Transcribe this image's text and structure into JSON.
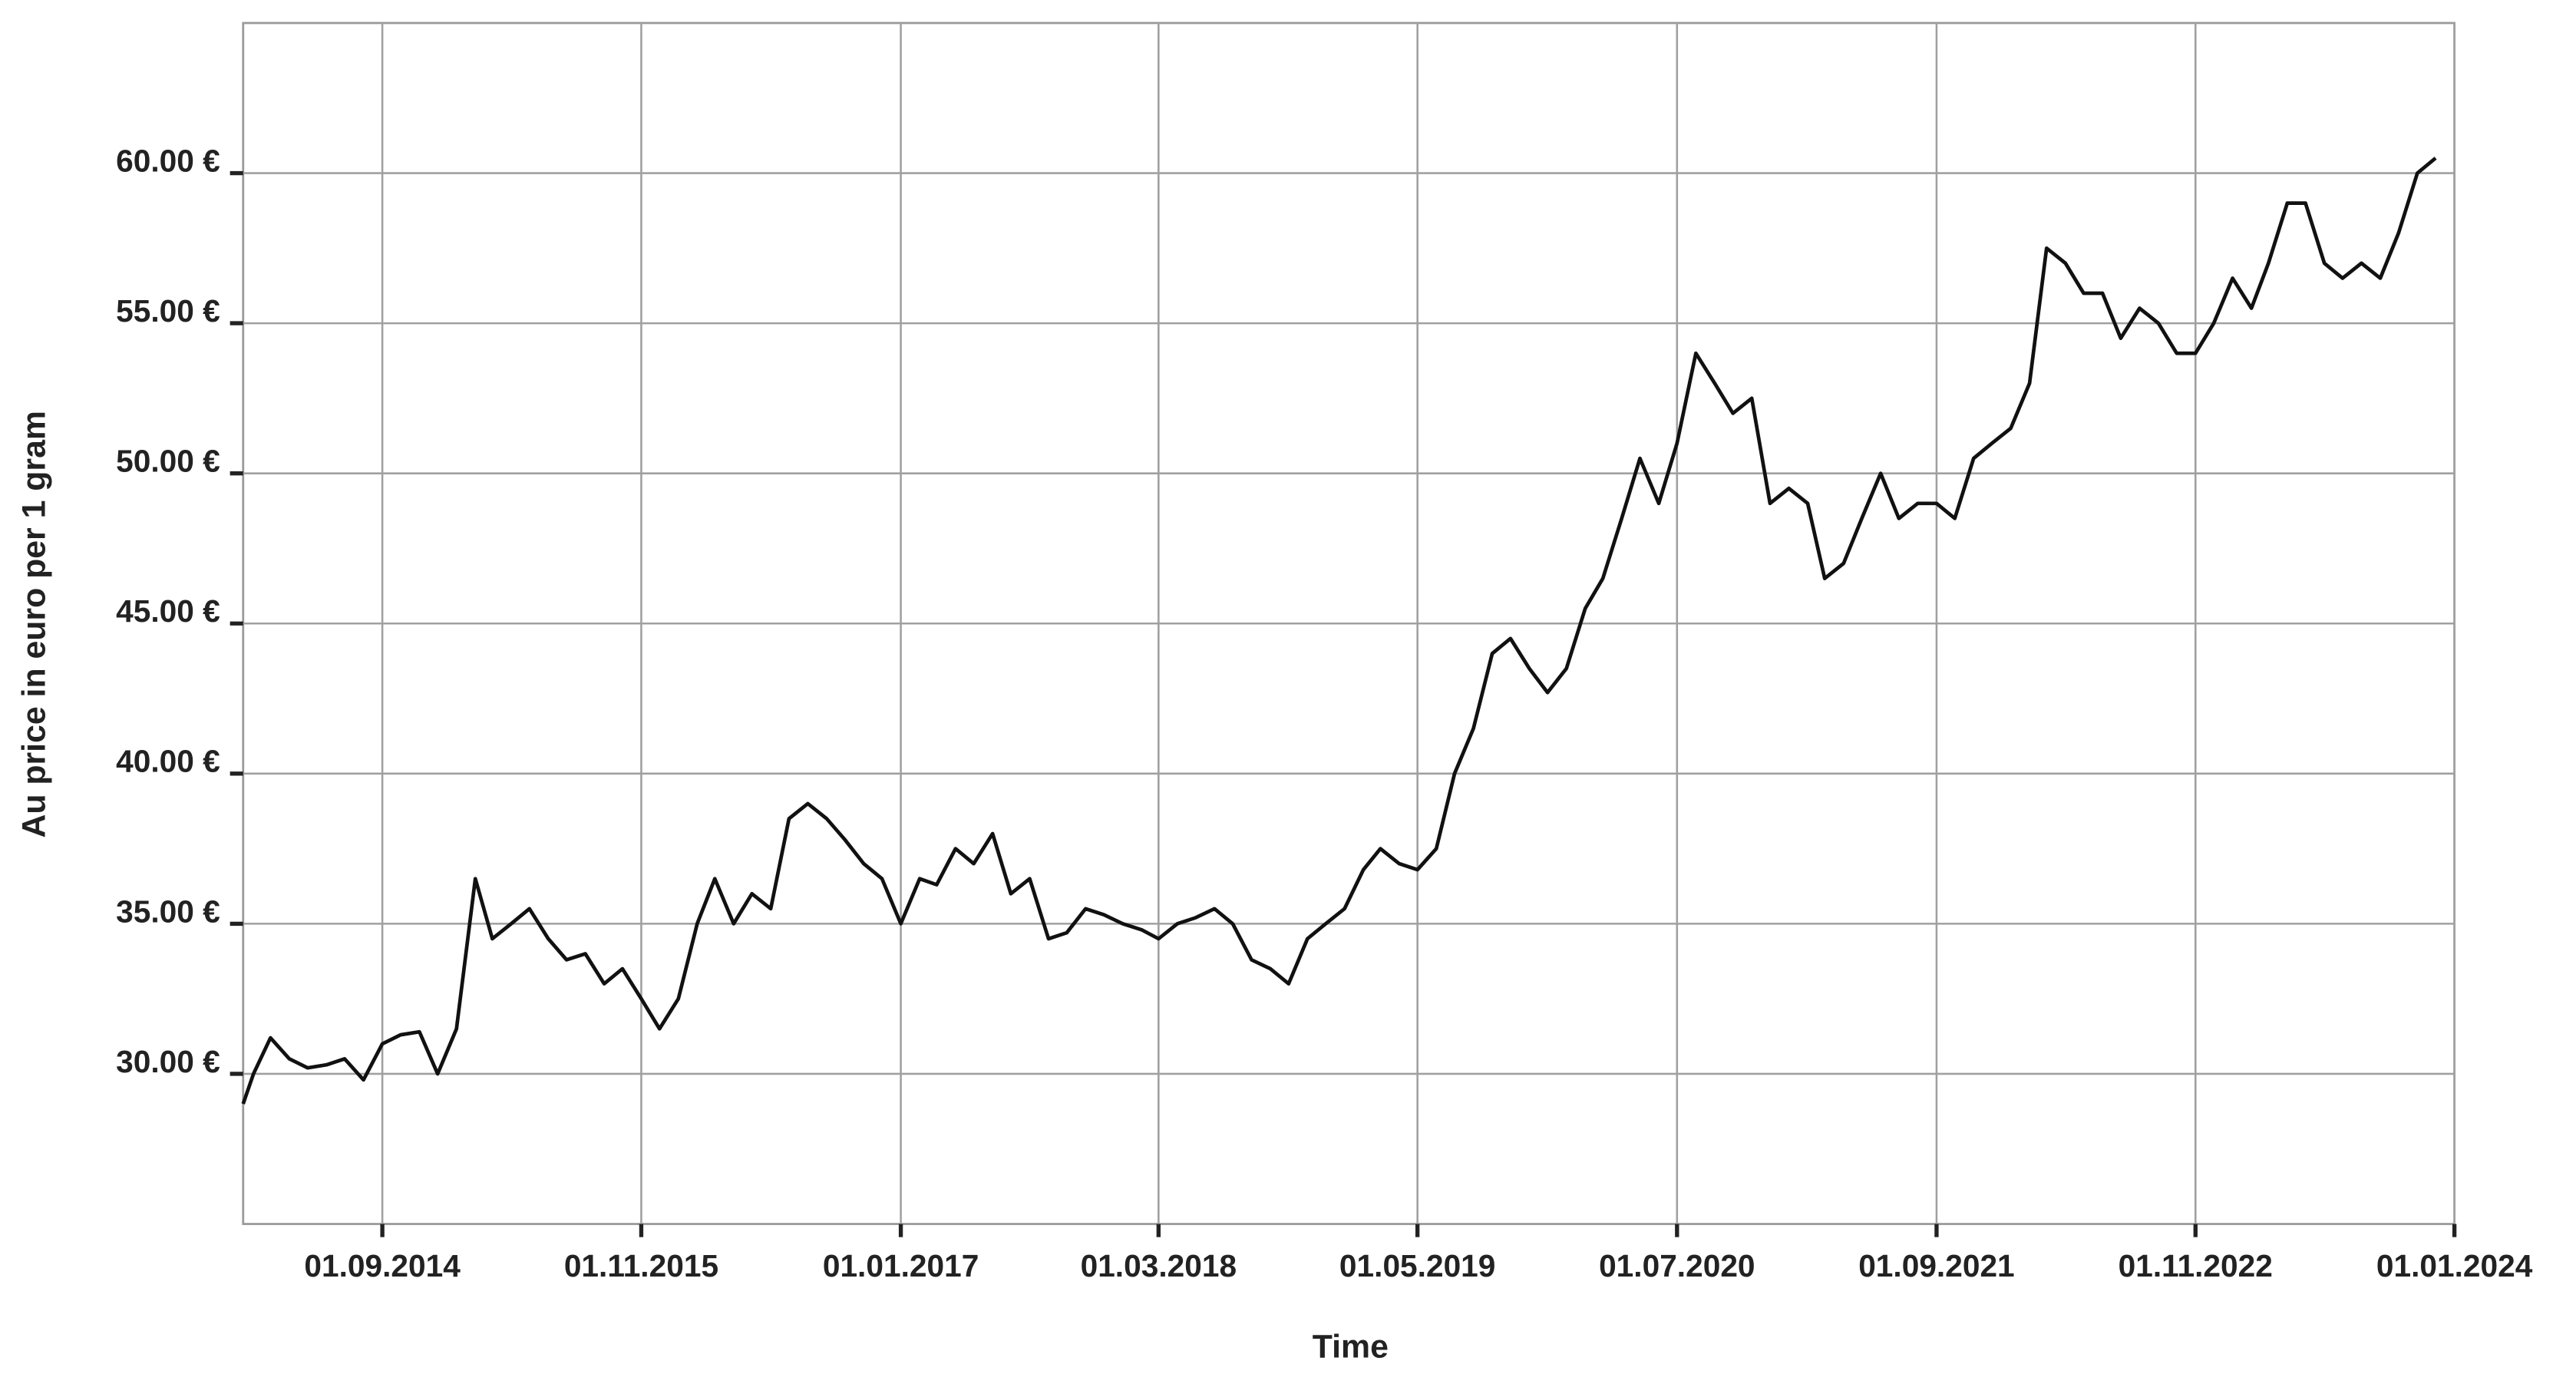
{
  "chart_data": {
    "type": "line",
    "xlabel": "Time",
    "ylabel": "Au price in euro per 1 gram",
    "xlim": [
      "2014-01-15",
      "2024-01-01"
    ],
    "xticks": [
      {
        "value": "2014-09-01",
        "label": "01.09.2014"
      },
      {
        "value": "2015-11-01",
        "label": "01.11.2015"
      },
      {
        "value": "2017-01-01",
        "label": "01.01.2017"
      },
      {
        "value": "2018-03-01",
        "label": "01.03.2018"
      },
      {
        "value": "2019-05-01",
        "label": "01.05.2019"
      },
      {
        "value": "2020-07-01",
        "label": "01.07.2020"
      },
      {
        "value": "2021-09-01",
        "label": "01.09.2021"
      },
      {
        "value": "2022-11-01",
        "label": "01.11.2022"
      },
      {
        "value": "2024-01-01",
        "label": "01.01.2024"
      }
    ],
    "ylim": [
      25,
      65
    ],
    "yticks": [
      {
        "value": 30,
        "label": "30.00 €"
      },
      {
        "value": 35,
        "label": "35.00 €"
      },
      {
        "value": 40,
        "label": "40.00 €"
      },
      {
        "value": 45,
        "label": "45.00 €"
      },
      {
        "value": 50,
        "label": "50.00 €"
      },
      {
        "value": 55,
        "label": "55.00 €"
      },
      {
        "value": 60,
        "label": "60.00 €"
      }
    ],
    "grid": true,
    "color": "#111111",
    "x": [
      "2014-01-15",
      "2014-02-01",
      "2014-03-01",
      "2014-04-01",
      "2014-05-01",
      "2014-06-01",
      "2014-07-01",
      "2014-08-01",
      "2014-09-01",
      "2014-10-01",
      "2014-11-01",
      "2014-12-01",
      "2015-01-01",
      "2015-02-01",
      "2015-03-01",
      "2015-04-01",
      "2015-05-01",
      "2015-06-01",
      "2015-07-01",
      "2015-08-01",
      "2015-09-01",
      "2015-10-01",
      "2015-11-01",
      "2015-12-01",
      "2016-01-01",
      "2016-02-01",
      "2016-03-01",
      "2016-04-01",
      "2016-05-01",
      "2016-06-01",
      "2016-07-01",
      "2016-08-01",
      "2016-09-01",
      "2016-10-01",
      "2016-11-01",
      "2016-12-01",
      "2017-01-01",
      "2017-02-01",
      "2017-03-01",
      "2017-04-01",
      "2017-05-01",
      "2017-06-01",
      "2017-07-01",
      "2017-08-01",
      "2017-09-01",
      "2017-10-01",
      "2017-11-01",
      "2017-12-01",
      "2018-01-01",
      "2018-02-01",
      "2018-03-01",
      "2018-04-01",
      "2018-05-01",
      "2018-06-01",
      "2018-07-01",
      "2018-08-01",
      "2018-09-01",
      "2018-10-01",
      "2018-11-01",
      "2018-12-01",
      "2019-01-01",
      "2019-02-01",
      "2019-03-01",
      "2019-04-01",
      "2019-05-01",
      "2019-06-01",
      "2019-07-01",
      "2019-08-01",
      "2019-09-01",
      "2019-10-01",
      "2019-11-01",
      "2019-12-01",
      "2020-01-01",
      "2020-02-01",
      "2020-03-01",
      "2020-04-01",
      "2020-05-01",
      "2020-06-01",
      "2020-07-01",
      "2020-08-01",
      "2020-09-01",
      "2020-10-01",
      "2020-11-01",
      "2020-12-01",
      "2021-01-01",
      "2021-02-01",
      "2021-03-01",
      "2021-04-01",
      "2021-05-01",
      "2021-06-01",
      "2021-07-01",
      "2021-08-01",
      "2021-09-01",
      "2021-10-01",
      "2021-11-01",
      "2021-12-01",
      "2022-01-01",
      "2022-02-01",
      "2022-03-01",
      "2022-04-01",
      "2022-05-01",
      "2022-06-01",
      "2022-07-01",
      "2022-08-01",
      "2022-09-01",
      "2022-10-01",
      "2022-11-01",
      "2022-12-01",
      "2023-01-01",
      "2023-02-01",
      "2023-03-01",
      "2023-04-01",
      "2023-05-01",
      "2023-06-01",
      "2023-07-01",
      "2023-08-01",
      "2023-09-01",
      "2023-10-01",
      "2023-11-01",
      "2023-12-01"
    ],
    "values": [
      29.0,
      30.0,
      31.2,
      30.5,
      30.2,
      30.3,
      30.5,
      29.8,
      31.0,
      31.3,
      31.4,
      30.0,
      31.5,
      36.5,
      34.5,
      35.0,
      35.5,
      34.5,
      33.8,
      34.0,
      33.0,
      33.5,
      32.5,
      31.5,
      32.5,
      35.0,
      36.5,
      35.0,
      36.0,
      35.5,
      38.5,
      39.0,
      38.5,
      37.8,
      37.0,
      36.5,
      35.0,
      36.5,
      36.3,
      37.5,
      37.0,
      38.0,
      36.0,
      36.5,
      34.5,
      34.7,
      35.5,
      35.3,
      35.0,
      34.8,
      34.5,
      35.0,
      35.2,
      35.5,
      35.0,
      33.8,
      33.5,
      33.0,
      34.5,
      35.0,
      35.5,
      36.8,
      37.5,
      37.0,
      36.8,
      37.5,
      40.0,
      41.5,
      44.0,
      44.5,
      43.5,
      42.7,
      43.5,
      45.5,
      46.5,
      48.5,
      50.5,
      49.0,
      51.0,
      54.0,
      53.0,
      52.0,
      52.5,
      49.0,
      49.5,
      49.0,
      46.5,
      47.0,
      48.5,
      50.0,
      48.5,
      49.0,
      49.0,
      48.5,
      50.5,
      51.0,
      51.5,
      53.0,
      57.5,
      57.0,
      56.0,
      56.0,
      54.5,
      55.5,
      55.0,
      54.0,
      54.0,
      55.0,
      56.5,
      55.5,
      57.0,
      59.0,
      59.0,
      57.0,
      56.5,
      57.0,
      56.5,
      58.0,
      60.0,
      60.5
    ]
  }
}
